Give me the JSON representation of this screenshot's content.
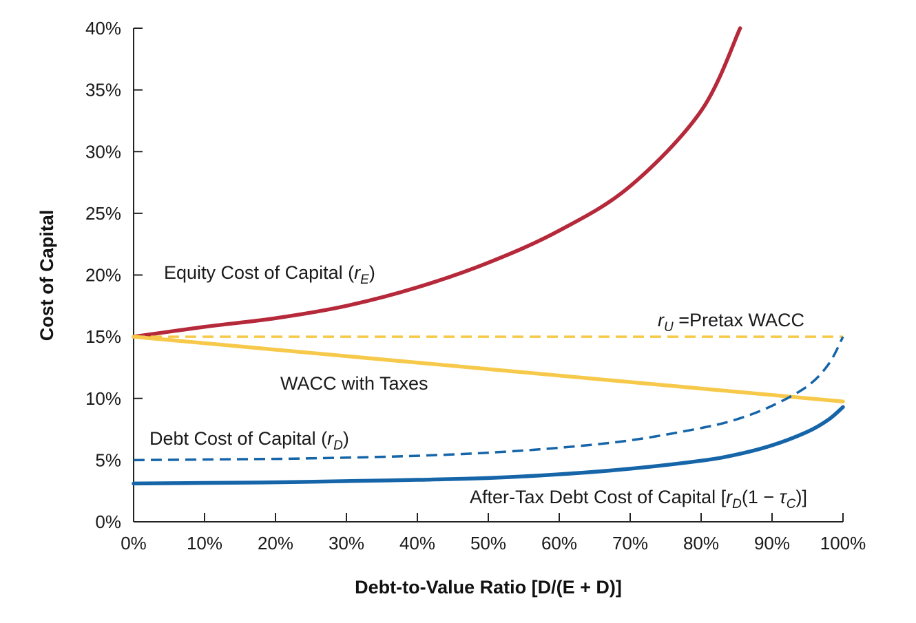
{
  "chart_data": {
    "type": "line",
    "xlabel": "Debt-to-Value Ratio  [D/(E + D)]",
    "ylabel": "Cost of Capital",
    "xlim": [
      0,
      100
    ],
    "ylim": [
      0,
      40
    ],
    "x_ticks": [
      "0%",
      "10%",
      "20%",
      "30%",
      "40%",
      "50%",
      "60%",
      "70%",
      "80%",
      "90%",
      "100%"
    ],
    "y_ticks": [
      "0%",
      "5%",
      "10%",
      "15%",
      "20%",
      "25%",
      "30%",
      "35%",
      "40%"
    ],
    "grid": false,
    "series": [
      {
        "name": "Equity Cost of Capital (rE)",
        "color": "#b5293a",
        "style": "solid",
        "x": [
          0,
          10,
          20,
          30,
          40,
          50,
          60,
          70,
          80,
          85.5
        ],
        "y": [
          15.0,
          15.8,
          16.5,
          17.5,
          19.0,
          21.0,
          23.6,
          27.2,
          33.3,
          40.0
        ]
      },
      {
        "name": "rU = Pretax WACC",
        "color": "#f7c94a",
        "style": "dashed",
        "x": [
          0,
          100
        ],
        "y": [
          15.0,
          15.0
        ]
      },
      {
        "name": "WACC with Taxes",
        "color": "#f7c94a",
        "style": "solid",
        "x": [
          0,
          100
        ],
        "y": [
          15.0,
          9.75
        ]
      },
      {
        "name": "Debt Cost of Capital (rD)",
        "color": "#1565a8",
        "style": "dashed",
        "x": [
          0,
          10,
          20,
          30,
          40,
          50,
          60,
          70,
          80,
          85,
          90,
          95,
          98,
          100
        ],
        "y": [
          5.0,
          5.05,
          5.1,
          5.2,
          5.35,
          5.6,
          6.0,
          6.6,
          7.6,
          8.3,
          9.4,
          11.0,
          12.8,
          15.0
        ]
      },
      {
        "name": "After-Tax Debt Cost of Capital [rD(1 − τC)]",
        "color": "#1565a8",
        "style": "solid",
        "x": [
          0,
          10,
          20,
          30,
          40,
          50,
          60,
          70,
          80,
          85,
          90,
          95,
          98,
          100
        ],
        "y": [
          3.1,
          3.15,
          3.2,
          3.3,
          3.4,
          3.55,
          3.85,
          4.3,
          4.95,
          5.45,
          6.2,
          7.3,
          8.3,
          9.3
        ]
      }
    ],
    "annotations": {
      "equity": {
        "main": "Equity Cost of Capital (",
        "var": "r",
        "sub": "E",
        "close": ")"
      },
      "pretax": {
        "var": "r",
        "sub": "U",
        "rest": " =Pretax WACC"
      },
      "wacc_taxes": {
        "text": "WACC with Taxes"
      },
      "debt": {
        "main": "Debt Cost of Capital (",
        "var": "r",
        "sub": "D",
        "close": ")"
      },
      "after_tax": {
        "main": "After-Tax Debt Cost of Capital [",
        "var": "r",
        "sub": "D",
        "mid": "(1 − ",
        "tau": "τ",
        "tau_sub": "C",
        "close": ")]"
      }
    }
  }
}
